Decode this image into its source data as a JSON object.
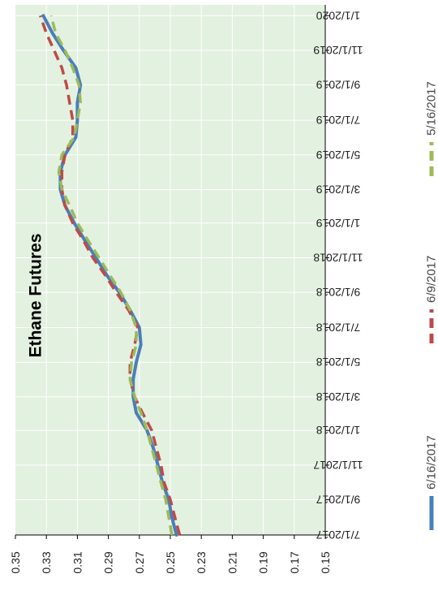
{
  "chart_data": {
    "type": "line",
    "title": "Ethane Futures",
    "xlabel": "",
    "ylabel": "",
    "ylim": [
      0.15,
      0.35
    ],
    "y_ticks": [
      "0.35",
      "0.33",
      "0.31",
      "0.29",
      "0.27",
      "0.25",
      "0.23",
      "0.21",
      "0.19",
      "0.17",
      "0.15"
    ],
    "x_ticks": [
      "7/1/2017",
      "9/1/2017",
      "11/1/2017",
      "1/1/2018",
      "3/1/2018",
      "5/1/2018",
      "7/1/2018",
      "9/1/2018",
      "11/1/2018",
      "1/1/2019",
      "3/1/2019",
      "5/1/2019",
      "7/1/2019",
      "9/1/2019",
      "11/1/2019",
      "1/1/2020"
    ],
    "x": [
      "2017-07-01",
      "2017-08-01",
      "2017-09-01",
      "2017-10-01",
      "2017-11-01",
      "2017-12-01",
      "2018-01-01",
      "2018-02-01",
      "2018-03-01",
      "2018-04-01",
      "2018-05-01",
      "2018-06-01",
      "2018-07-01",
      "2018-08-01",
      "2018-09-01",
      "2018-10-01",
      "2018-11-01",
      "2018-12-01",
      "2019-01-01",
      "2019-02-01",
      "2019-03-01",
      "2019-04-01",
      "2019-05-01",
      "2019-06-01",
      "2019-07-01",
      "2019-08-01",
      "2019-09-01",
      "2019-10-01",
      "2019-11-01",
      "2019-12-01",
      "2020-01-01"
    ],
    "grid": true,
    "background": "#e3f1e0",
    "orientation": "rotated-90",
    "legend_position": "bottom",
    "series": [
      {
        "name": "6/16/2017",
        "color": "#4a7ebb",
        "style": "solid",
        "values": [
          0.246,
          0.249,
          0.251,
          0.255,
          0.258,
          0.261,
          0.265,
          0.272,
          0.274,
          0.274,
          0.272,
          0.269,
          0.27,
          0.276,
          0.283,
          0.291,
          0.298,
          0.305,
          0.312,
          0.318,
          0.321,
          0.321,
          0.318,
          0.311,
          0.31,
          0.31,
          0.308,
          0.311,
          0.319,
          0.326,
          0.332
        ]
      },
      {
        "name": "6/9/2017",
        "color": "#be4b48",
        "style": "dashed",
        "values": [
          0.244,
          0.247,
          0.25,
          0.254,
          0.256,
          0.259,
          0.262,
          0.268,
          0.273,
          0.276,
          0.276,
          0.273,
          0.271,
          0.277,
          0.285,
          0.292,
          0.3,
          0.306,
          0.313,
          0.318,
          0.32,
          0.32,
          0.318,
          0.313,
          0.313,
          0.315,
          0.317,
          0.32,
          0.325,
          0.33,
          0.334
        ]
      },
      {
        "name": "5/16/2017",
        "color": "#9bbb59",
        "style": "dashed",
        "values": [
          0.249,
          0.251,
          0.253,
          0.256,
          0.259,
          0.262,
          0.265,
          0.269,
          0.273,
          0.276,
          0.275,
          0.272,
          0.272,
          0.276,
          0.282,
          0.289,
          0.296,
          0.303,
          0.31,
          0.315,
          0.32,
          0.322,
          0.32,
          0.312,
          0.31,
          0.308,
          0.309,
          0.313,
          0.318,
          0.324,
          0.327
        ]
      }
    ]
  }
}
